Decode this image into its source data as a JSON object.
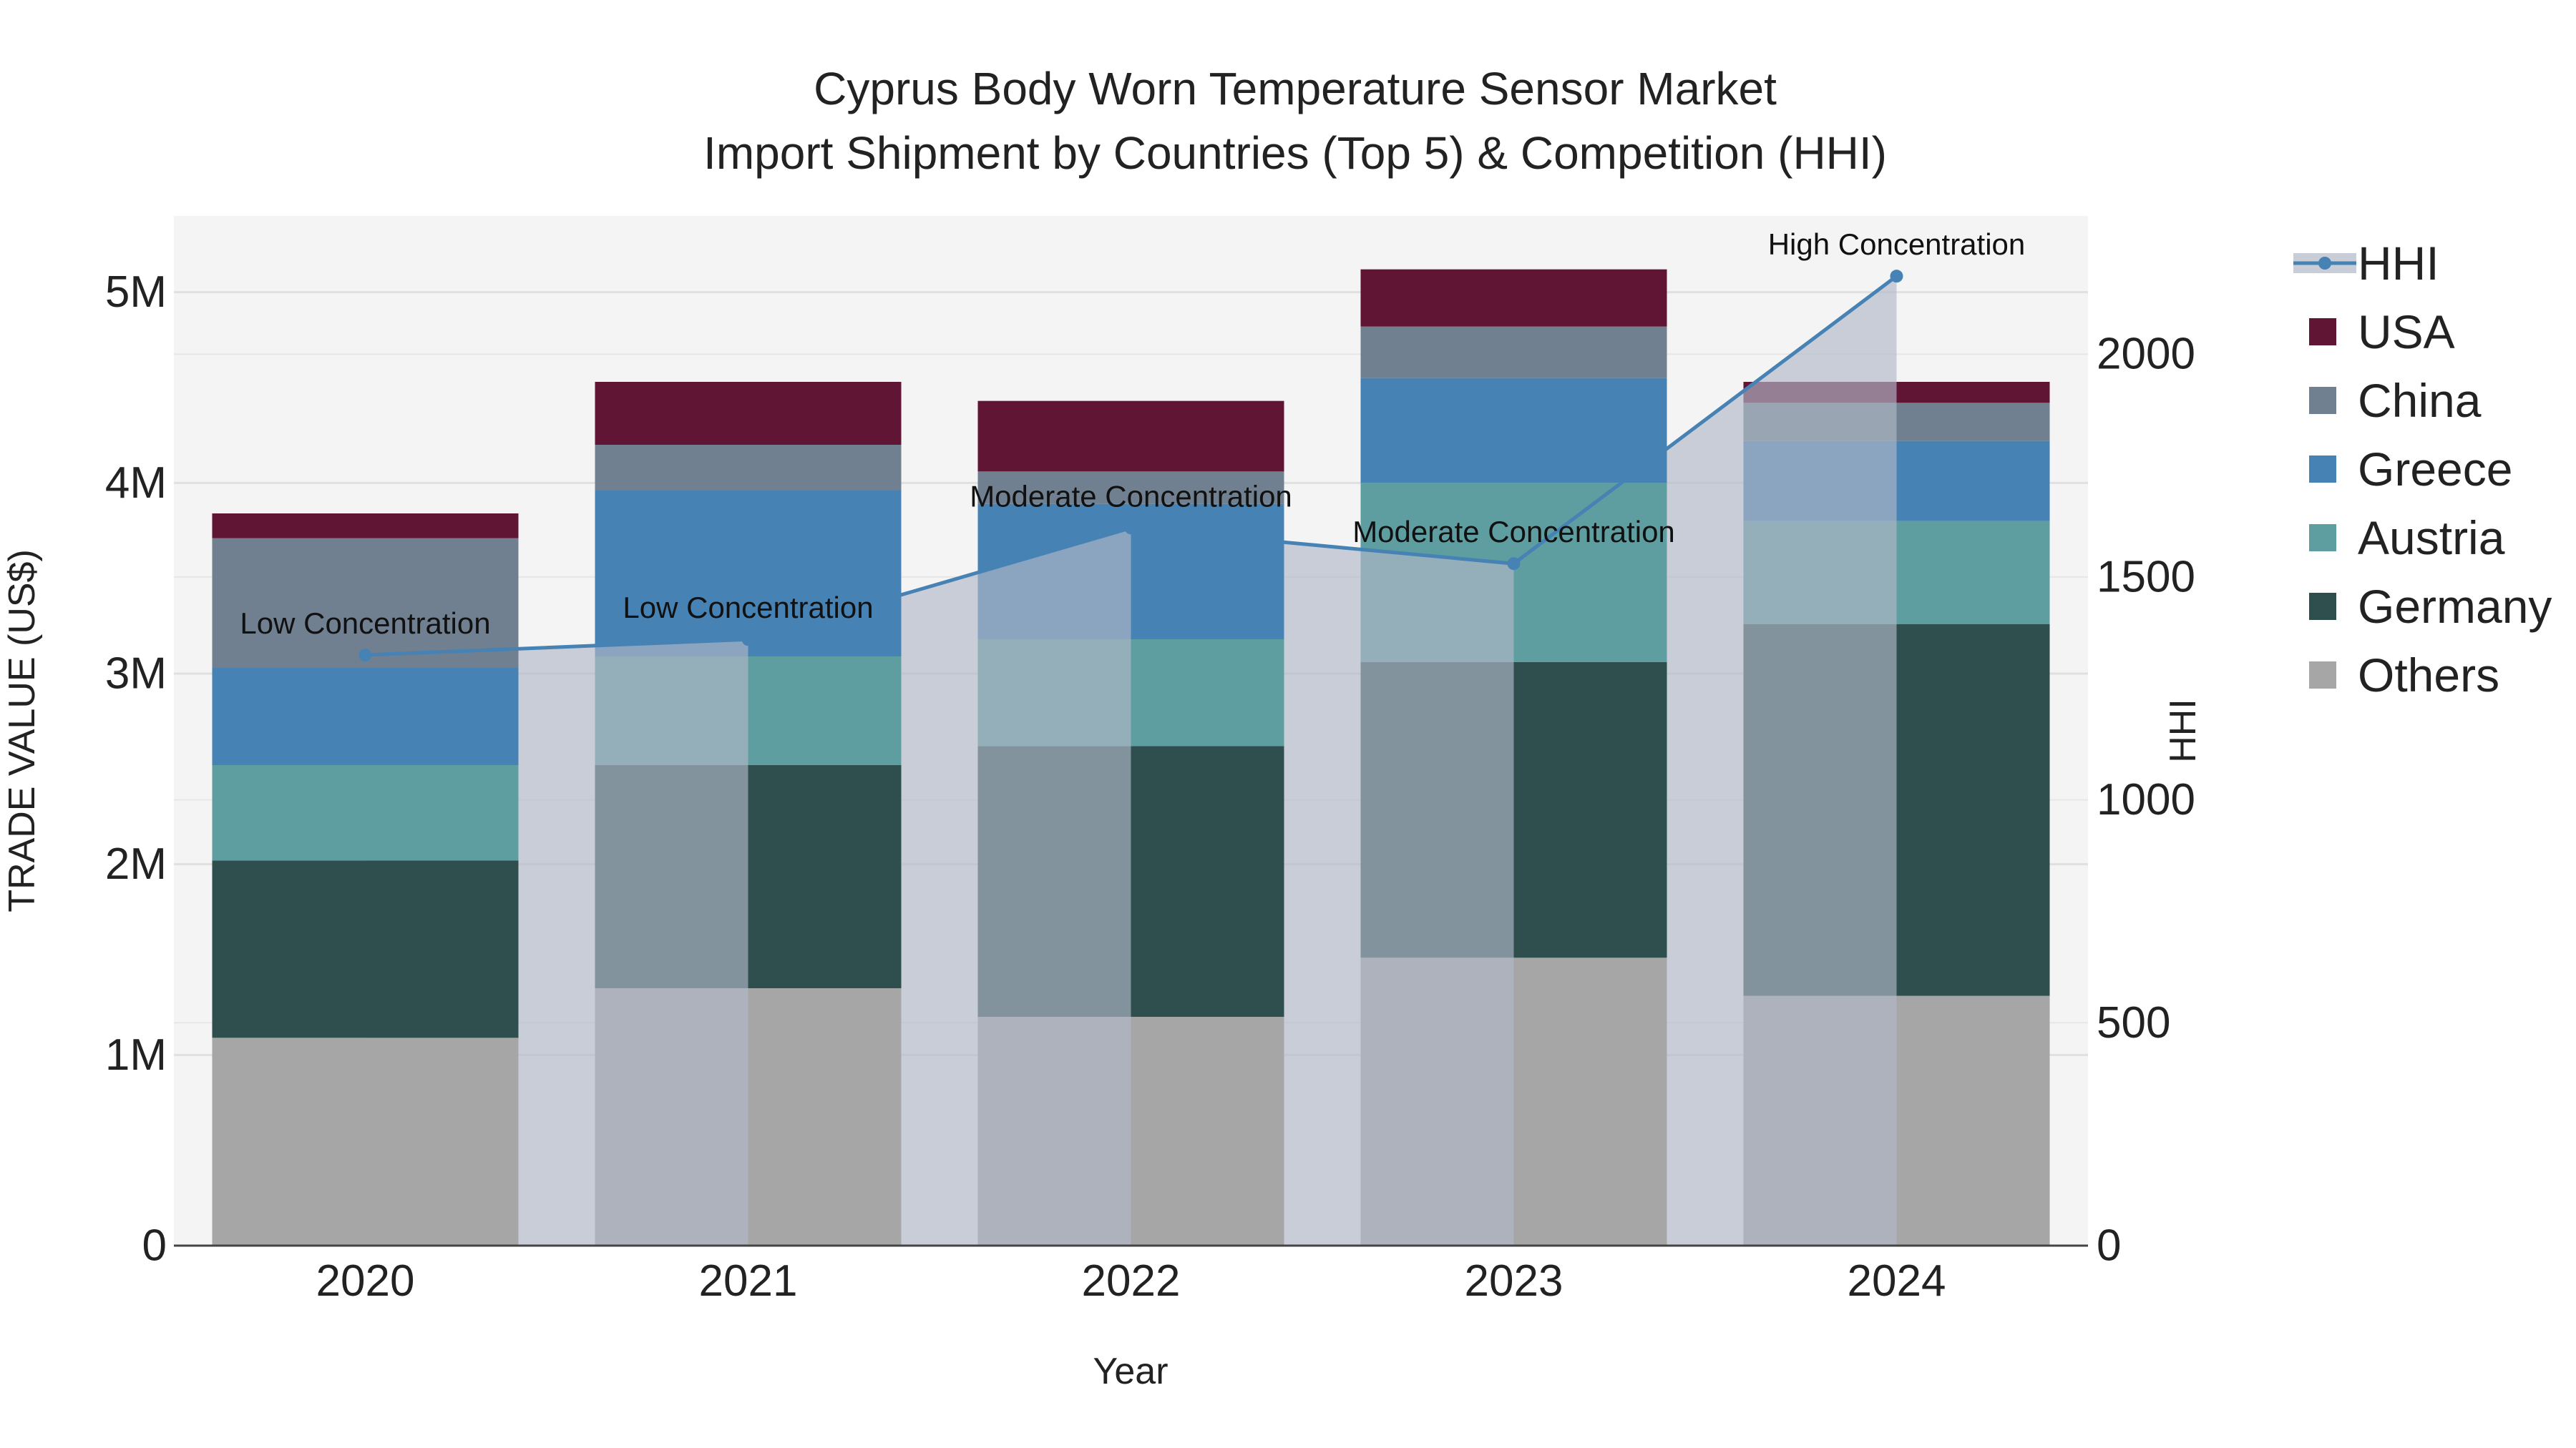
{
  "chart_data": {
    "type": "bar",
    "title": "Cyprus Body Worn Temperature Sensor Market",
    "subtitle": "Import Shipment by Countries (Top 5) & Competition (HHI)",
    "xlabel": "Year",
    "ylabel": "TRADE VALUE (US$)",
    "y2label": "HHI",
    "categories": [
      "2020",
      "2021",
      "2022",
      "2023",
      "2024"
    ],
    "ylim": [
      0,
      5400000
    ],
    "y2lim": [
      0,
      2310
    ],
    "y_ticks": [
      {
        "value": 0,
        "label": "0"
      },
      {
        "value": 1000000,
        "label": "1M"
      },
      {
        "value": 2000000,
        "label": "2M"
      },
      {
        "value": 3000000,
        "label": "3M"
      },
      {
        "value": 4000000,
        "label": "4M"
      },
      {
        "value": 5000000,
        "label": "5M"
      }
    ],
    "y2_ticks": [
      {
        "value": 0,
        "label": "0"
      },
      {
        "value": 500,
        "label": "500"
      },
      {
        "value": 1000,
        "label": "1000"
      },
      {
        "value": 1500,
        "label": "1500"
      },
      {
        "value": 2000,
        "label": "2000"
      }
    ],
    "series": [
      {
        "name": "Others",
        "color": "#a6a6a6",
        "values": [
          1090000,
          1350000,
          1200000,
          1510000,
          1310000
        ]
      },
      {
        "name": "Germany",
        "color": "#2f4f4f",
        "values": [
          930000,
          1170000,
          1420000,
          1550000,
          1950000
        ]
      },
      {
        "name": "Austria",
        "color": "#5f9ea0",
        "values": [
          500000,
          570000,
          560000,
          940000,
          540000
        ]
      },
      {
        "name": "Greece",
        "color": "#4682b4",
        "values": [
          510000,
          870000,
          710000,
          550000,
          420000
        ]
      },
      {
        "name": "China",
        "color": "#708090",
        "values": [
          680000,
          240000,
          170000,
          270000,
          200000
        ]
      },
      {
        "name": "USA",
        "color": "#601535",
        "values": [
          130000,
          330000,
          370000,
          300000,
          110000
        ]
      }
    ],
    "hhi": {
      "name": "HHI",
      "color": "#4682b4",
      "fill_color": "#b0b8c8",
      "values": [
        1325,
        1360,
        1610,
        1530,
        2175
      ],
      "annotations": [
        "Low Concentration",
        "Low Concentration",
        "Moderate Concentration",
        "Moderate Concentration",
        "High Concentration"
      ]
    },
    "legend_position": "right",
    "grid": true
  }
}
